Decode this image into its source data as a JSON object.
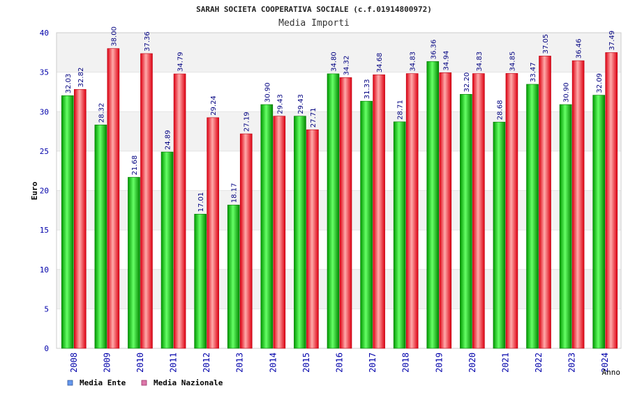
{
  "chart_data": {
    "type": "bar",
    "title": "SARAH SOCIETA COOPERATIVA SOCIALE (c.f.01914800972)",
    "subtitle": "Media Importi",
    "xlabel": "Anno",
    "ylabel": "Euro",
    "ylim": [
      0,
      40
    ],
    "yticks": [
      0,
      5,
      10,
      15,
      20,
      25,
      30,
      35,
      40
    ],
    "grid": true,
    "legend_position": "bottom-left",
    "categories": [
      "2008",
      "2009",
      "2010",
      "2011",
      "2012",
      "2013",
      "2014",
      "2015",
      "2016",
      "2017",
      "2018",
      "2019",
      "2020",
      "2021",
      "2022",
      "2023",
      "2024"
    ],
    "series": [
      {
        "name": "Media Ente",
        "color": "#00aa00",
        "values": [
          32.03,
          28.32,
          21.68,
          24.89,
          17.01,
          18.17,
          30.9,
          29.43,
          34.8,
          31.33,
          28.71,
          36.36,
          32.2,
          28.68,
          33.47,
          30.9,
          32.09
        ],
        "labels": [
          "32.03",
          "28.32",
          "21.68",
          "24.89",
          "17.01",
          "18.17",
          "30.90",
          "29.43",
          "34.80",
          "31.33",
          "28.71",
          "36.36",
          "32.20",
          "28.68",
          "33.47",
          "30.90",
          "32.09"
        ]
      },
      {
        "name": "Media Nazionale",
        "color": "#ee1122",
        "values": [
          32.82,
          38.0,
          37.36,
          34.79,
          29.24,
          27.19,
          29.43,
          27.71,
          34.32,
          34.68,
          34.83,
          34.94,
          34.83,
          34.85,
          37.05,
          36.46,
          37.49
        ],
        "labels": [
          "32.82",
          "38.00",
          "37.36",
          "34.79",
          "29.24",
          "27.19",
          "29.43",
          "27.71",
          "34.32",
          "34.68",
          "34.83",
          "34.94",
          "34.83",
          "34.85",
          "37.05",
          "36.46",
          "37.49"
        ]
      }
    ]
  },
  "legend": [
    {
      "label": "Media Ente",
      "swatch_color": "#6699ee"
    },
    {
      "label": "Media Nazionale",
      "swatch_color": "#dd77aa"
    }
  ],
  "colors": {
    "tick_text": "#0000aa",
    "label_text": "#000080",
    "grid_band": "#f2f2f2",
    "axis": "#cccccc"
  }
}
